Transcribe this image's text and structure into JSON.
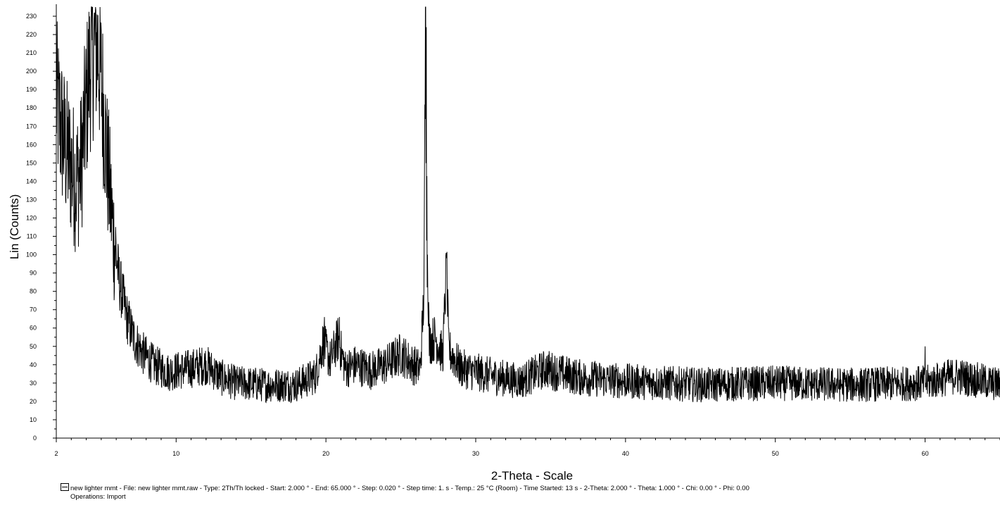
{
  "chart_data": {
    "type": "line",
    "xlabel": "2-Theta - Scale",
    "ylabel": "Lin (Counts)",
    "xlim": [
      2,
      65
    ],
    "ylim": [
      0,
      235
    ],
    "x_ticks": [
      2,
      10,
      20,
      30,
      40,
      50,
      60
    ],
    "y_ticks": [
      0,
      10,
      20,
      30,
      40,
      50,
      60,
      70,
      80,
      90,
      100,
      110,
      120,
      130,
      140,
      150,
      160,
      170,
      180,
      190,
      200,
      210,
      220,
      230
    ],
    "grid": false,
    "line_color": "#000000",
    "step": 0.02,
    "profile_points": [
      [
        2.0,
        185
      ],
      [
        2.3,
        170
      ],
      [
        2.6,
        158
      ],
      [
        3.0,
        148
      ],
      [
        3.3,
        140
      ],
      [
        3.6,
        145
      ],
      [
        3.9,
        172
      ],
      [
        4.2,
        200
      ],
      [
        4.6,
        216
      ],
      [
        4.8,
        212
      ],
      [
        5.1,
        185
      ],
      [
        5.4,
        150
      ],
      [
        5.8,
        112
      ],
      [
        6.2,
        86
      ],
      [
        6.7,
        66
      ],
      [
        7.2,
        54
      ],
      [
        7.8,
        46
      ],
      [
        8.5,
        40
      ],
      [
        9.5,
        36
      ],
      [
        11,
        38
      ],
      [
        12,
        40
      ],
      [
        13,
        33
      ],
      [
        14,
        30
      ],
      [
        16,
        29
      ],
      [
        18,
        29
      ],
      [
        19.3,
        34
      ],
      [
        19.8,
        52
      ],
      [
        20.3,
        42
      ],
      [
        20.8,
        54
      ],
      [
        21.3,
        38
      ],
      [
        22,
        40
      ],
      [
        23,
        37
      ],
      [
        24,
        40
      ],
      [
        25,
        46
      ],
      [
        25.8,
        40
      ],
      [
        26.3,
        38
      ],
      [
        26.55,
        80
      ],
      [
        26.65,
        228
      ],
      [
        26.75,
        110
      ],
      [
        26.9,
        52
      ],
      [
        27.3,
        55
      ],
      [
        27.8,
        45
      ],
      [
        28.05,
        95
      ],
      [
        28.2,
        48
      ],
      [
        29,
        38
      ],
      [
        31,
        34
      ],
      [
        33,
        31
      ],
      [
        34.7,
        38
      ],
      [
        35.3,
        36
      ],
      [
        37,
        33
      ],
      [
        40,
        31
      ],
      [
        45,
        29
      ],
      [
        50,
        30
      ],
      [
        55,
        29
      ],
      [
        60,
        30
      ],
      [
        62,
        34
      ],
      [
        65,
        29
      ]
    ],
    "noise_amplitude": 9,
    "peaks": [
      [
        4.62,
        238
      ],
      [
        26.65,
        235
      ],
      [
        26.7,
        224
      ],
      [
        28.06,
        98
      ],
      [
        20.9,
        66
      ],
      [
        19.9,
        66
      ],
      [
        60.0,
        50
      ]
    ]
  },
  "caption": {
    "legend_label": "new lighter mmt - File: new lighter mmt.raw - Type: 2Th/Th locked - Start: 2.000 ° - End: 65.000 ° - Step: 0.020 ° - Step time: 1. s - Temp.: 25 °C (Room) - Time Started: 13 s - 2-Theta: 2.000 ° - Theta: 1.000 ° - Chi: 0.00 ° - Phi: 0.00",
    "operations": "Operations: Import"
  }
}
